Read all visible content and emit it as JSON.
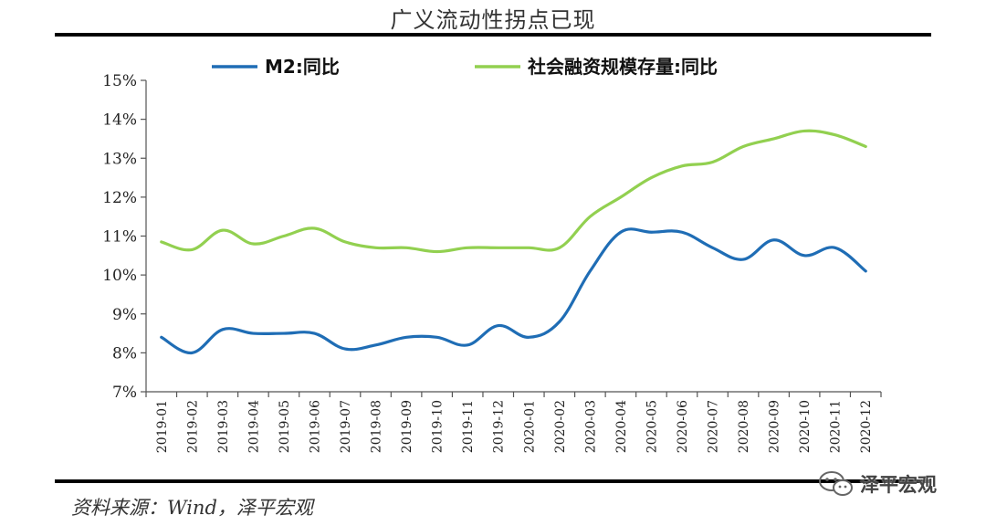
{
  "title": "广义流动性拐点已现",
  "source": "资料来源：Wind，泽平宏观",
  "watermark": {
    "text": "泽平宏观",
    "icon": "wechat-icon"
  },
  "chart_data": {
    "type": "line",
    "title": "广义流动性拐点已现",
    "xlabel": "",
    "ylabel": "",
    "ylim": [
      7,
      15
    ],
    "y_ticks": [
      "7%",
      "8%",
      "9%",
      "10%",
      "11%",
      "12%",
      "13%",
      "14%",
      "15%"
    ],
    "legend_position": "top",
    "grid": false,
    "categories": [
      "2019-01",
      "2019-02",
      "2019-03",
      "2019-04",
      "2019-05",
      "2019-06",
      "2019-07",
      "2019-08",
      "2019-09",
      "2019-10",
      "2019-11",
      "2019-12",
      "2020-01",
      "2020-02",
      "2020-03",
      "2020-04",
      "2020-05",
      "2020-06",
      "2020-07",
      "2020-08",
      "2020-09",
      "2020-10",
      "2020-11",
      "2020-12"
    ],
    "series": [
      {
        "name": "M2:同比",
        "color": "#1f6db5",
        "values": [
          8.4,
          8.0,
          8.6,
          8.5,
          8.5,
          8.5,
          8.1,
          8.2,
          8.4,
          8.4,
          8.2,
          8.7,
          8.4,
          8.8,
          10.1,
          11.1,
          11.1,
          11.1,
          10.7,
          10.4,
          10.9,
          10.5,
          10.7,
          10.1
        ]
      },
      {
        "name": "社会融资规模存量:同比",
        "color": "#92d050",
        "values": [
          10.85,
          10.65,
          11.15,
          10.8,
          11.0,
          11.2,
          10.85,
          10.7,
          10.7,
          10.6,
          10.7,
          10.7,
          10.7,
          10.7,
          11.5,
          12.0,
          12.5,
          12.8,
          12.9,
          13.3,
          13.5,
          13.7,
          13.6,
          13.3
        ]
      }
    ]
  }
}
